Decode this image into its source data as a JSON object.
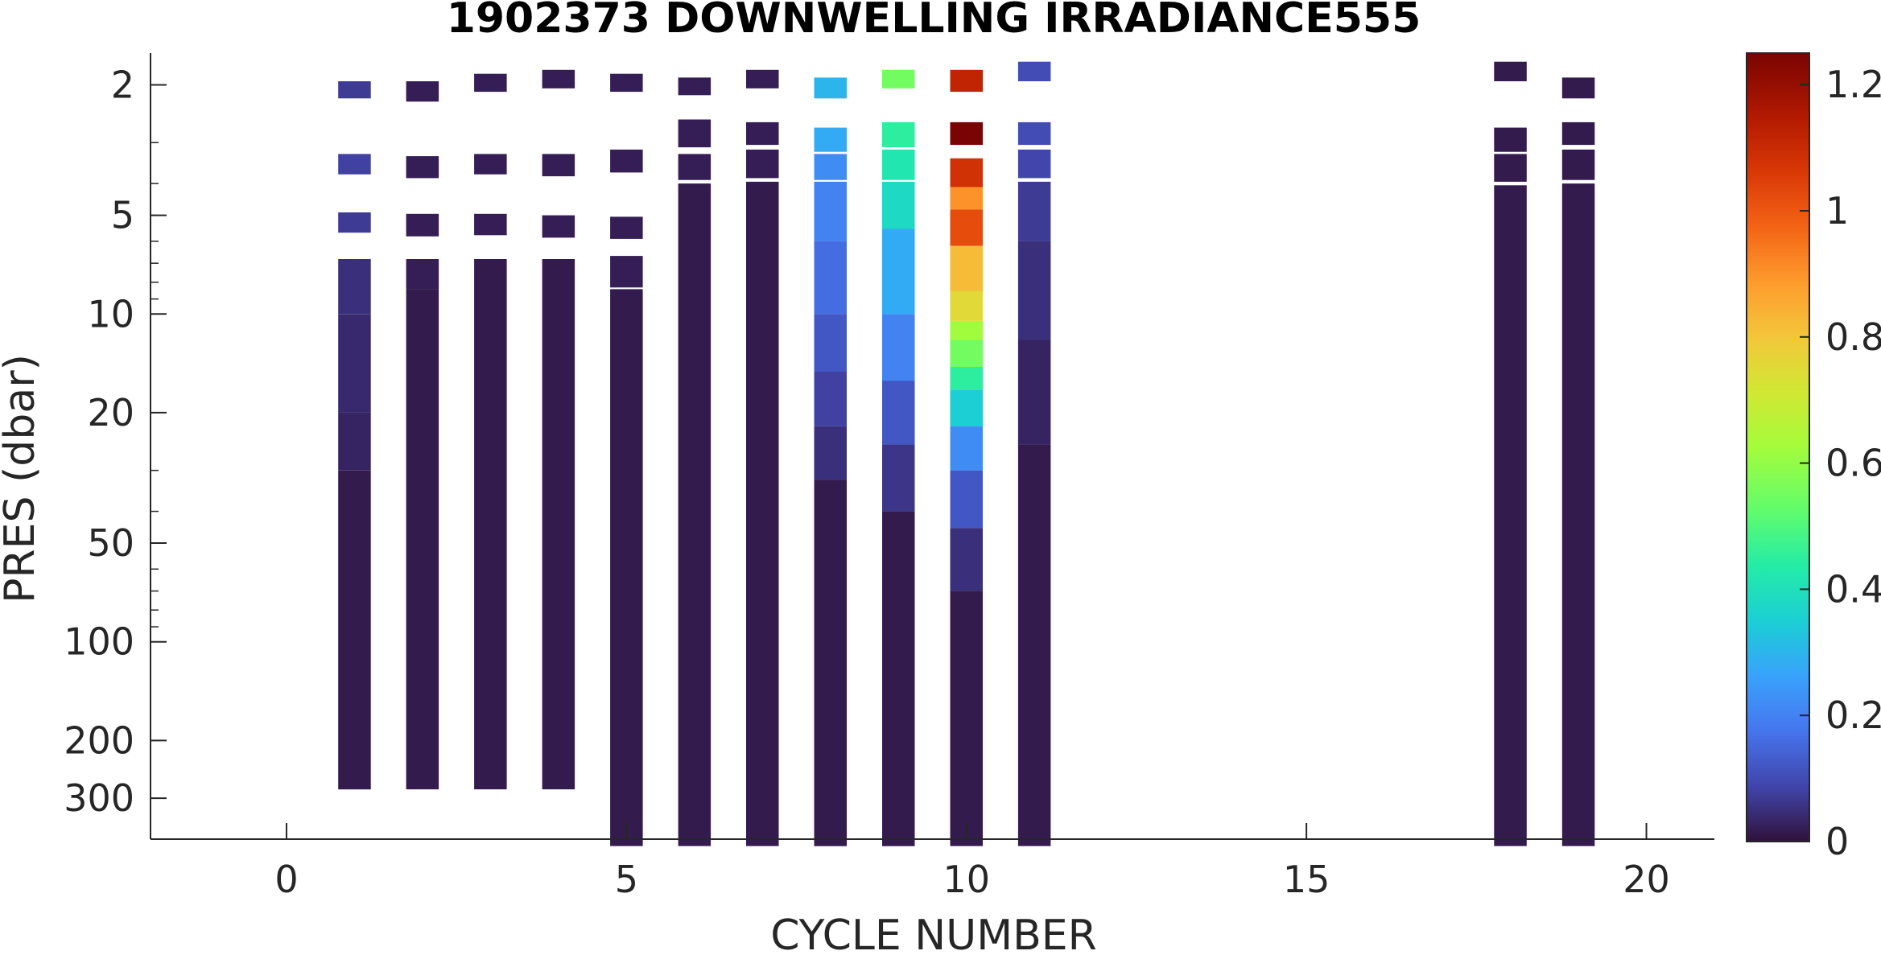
{
  "chart_data": {
    "type": "heatmap",
    "title": "1902373  DOWNWELLING IRRADIANCE555",
    "xlabel": "CYCLE NUMBER",
    "ylabel": "PRES (dbar)",
    "xlim": [
      -2,
      21
    ],
    "ylim": [
      1.6,
      400
    ],
    "y_scale": "log",
    "y_reversed": true,
    "x_ticks": [
      0,
      5,
      10,
      15,
      20
    ],
    "y_ticks": [
      2,
      5,
      10,
      20,
      50,
      100,
      200,
      300
    ],
    "colorbar": {
      "colormap": "turbo",
      "range": [
        0,
        1.25
      ],
      "ticks": [
        0,
        0.2,
        0.4,
        0.6,
        0.8,
        1,
        1.2
      ],
      "tick_labels": [
        "0",
        "0.2",
        "0.4",
        "0.6",
        "0.8",
        "1",
        "1.2"
      ]
    },
    "profiles": [
      {
        "cycle": 1,
        "bottom": 282,
        "segments": [
          [
            1.95,
            2.2,
            0.07
          ],
          [
            3.25,
            3.75,
            0.08
          ],
          [
            4.9,
            5.65,
            0.07
          ],
          [
            6.8,
            10,
            0.05
          ],
          [
            10,
            20,
            0.04
          ],
          [
            20,
            30,
            0.03
          ],
          [
            30,
            282,
            0.015
          ]
        ]
      },
      {
        "cycle": 2,
        "bottom": 282,
        "segments": [
          [
            1.95,
            2.25,
            0.02
          ],
          [
            3.3,
            3.85,
            0.02
          ],
          [
            4.95,
            5.8,
            0.02
          ],
          [
            6.8,
            8.4,
            0.02
          ],
          [
            8.4,
            282,
            0.015
          ]
        ]
      },
      {
        "cycle": 3,
        "bottom": 282,
        "segments": [
          [
            1.85,
            2.1,
            0.02
          ],
          [
            3.25,
            3.75,
            0.02
          ],
          [
            4.95,
            5.75,
            0.02
          ],
          [
            6.8,
            282,
            0.015
          ]
        ]
      },
      {
        "cycle": 4,
        "bottom": 282,
        "segments": [
          [
            1.8,
            2.05,
            0.02
          ],
          [
            3.25,
            3.8,
            0.02
          ],
          [
            5.0,
            5.85,
            0.02
          ],
          [
            6.8,
            282,
            0.015
          ]
        ]
      },
      {
        "cycle": 5,
        "bottom": 420,
        "segments": [
          [
            1.85,
            2.1,
            0.02
          ],
          [
            3.15,
            3.7,
            0.02
          ],
          [
            5.05,
            5.9,
            0.02
          ],
          [
            6.65,
            8.3,
            0.02
          ],
          [
            8.4,
            420,
            0.015
          ]
        ]
      },
      {
        "cycle": 6,
        "bottom": 420,
        "segments": [
          [
            1.9,
            2.15,
            0.02
          ],
          [
            2.55,
            3.1,
            0.02
          ],
          [
            3.25,
            3.9,
            0.02
          ],
          [
            4.0,
            420,
            0.015
          ]
        ]
      },
      {
        "cycle": 7,
        "bottom": 420,
        "segments": [
          [
            1.8,
            2.05,
            0.02
          ],
          [
            2.6,
            3.05,
            0.02
          ],
          [
            3.15,
            3.85,
            0.02
          ],
          [
            3.95,
            420,
            0.015
          ]
        ]
      },
      {
        "cycle": 8,
        "bottom": 420,
        "segments": [
          [
            1.9,
            2.2,
            0.3
          ],
          [
            2.7,
            3.2,
            0.28
          ],
          [
            3.25,
            3.9,
            0.22
          ],
          [
            3.95,
            6.0,
            0.2
          ],
          [
            6.0,
            10,
            0.16
          ],
          [
            10,
            15,
            0.12
          ],
          [
            15,
            22,
            0.08
          ],
          [
            22,
            32,
            0.05
          ],
          [
            32,
            420,
            0.015
          ]
        ]
      },
      {
        "cycle": 9,
        "bottom": 420,
        "segments": [
          [
            1.8,
            2.05,
            0.55
          ],
          [
            2.6,
            3.1,
            0.45
          ],
          [
            3.15,
            3.9,
            0.42
          ],
          [
            3.95,
            5.5,
            0.38
          ],
          [
            5.5,
            10,
            0.28
          ],
          [
            10,
            16,
            0.2
          ],
          [
            16,
            25,
            0.12
          ],
          [
            25,
            40,
            0.06
          ],
          [
            40,
            420,
            0.015
          ]
        ]
      },
      {
        "cycle": 10,
        "bottom": 420,
        "segments": [
          [
            1.8,
            2.1,
            1.12
          ],
          [
            2.6,
            3.05,
            1.25
          ],
          [
            3.35,
            4.1,
            1.08
          ],
          [
            4.1,
            4.8,
            0.9
          ],
          [
            4.8,
            6.2,
            1.02
          ],
          [
            6.2,
            8.5,
            0.82
          ],
          [
            8.5,
            10.5,
            0.75
          ],
          [
            10.5,
            12,
            0.62
          ],
          [
            12,
            14.5,
            0.55
          ],
          [
            14.5,
            17,
            0.45
          ],
          [
            17,
            22,
            0.35
          ],
          [
            22,
            30,
            0.22
          ],
          [
            30,
            45,
            0.12
          ],
          [
            45,
            70,
            0.05
          ],
          [
            70,
            420,
            0.015
          ]
        ]
      },
      {
        "cycle": 11,
        "bottom": 420,
        "segments": [
          [
            1.7,
            1.95,
            0.1
          ],
          [
            2.6,
            3.05,
            0.1
          ],
          [
            3.15,
            3.85,
            0.09
          ],
          [
            3.95,
            6,
            0.07
          ],
          [
            6,
            12,
            0.05
          ],
          [
            12,
            25,
            0.03
          ],
          [
            25,
            420,
            0.015
          ]
        ]
      },
      {
        "cycle": 18,
        "bottom": 420,
        "segments": [
          [
            1.7,
            1.95,
            0.015
          ],
          [
            2.7,
            3.2,
            0.015
          ],
          [
            3.25,
            3.95,
            0.015
          ],
          [
            4.05,
            420,
            0.015
          ]
        ]
      },
      {
        "cycle": 19,
        "bottom": 420,
        "segments": [
          [
            1.9,
            2.2,
            0.015
          ],
          [
            2.6,
            3.05,
            0.015
          ],
          [
            3.15,
            3.9,
            0.015
          ],
          [
            4.0,
            420,
            0.015
          ]
        ]
      }
    ]
  }
}
